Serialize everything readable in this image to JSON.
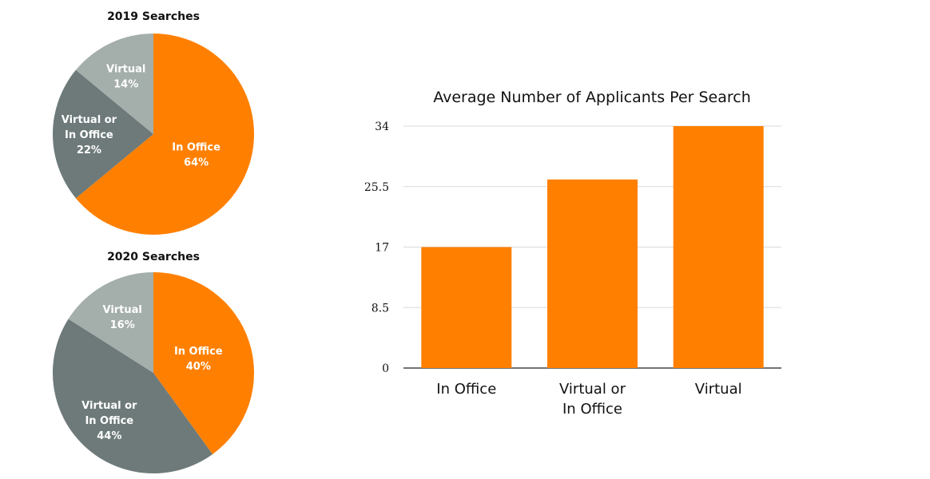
{
  "colors": {
    "in_office": "#FF8000",
    "virtual_or_in_office": "#6E7A7A",
    "virtual": "#A4AEAB",
    "bar": "#FF8000",
    "grid": "#d9d9d9",
    "axis": "#222222"
  },
  "chart_data": [
    {
      "type": "pie",
      "title": "2019 Searches",
      "slices": [
        {
          "label_lines": [
            "In Office",
            "64%"
          ],
          "value": 64,
          "color_key": "in_office"
        },
        {
          "label_lines": [
            "Virtual or",
            "In Office",
            "22%"
          ],
          "value": 22,
          "color_key": "virtual_or_in_office"
        },
        {
          "label_lines": [
            "Virtual",
            "14%"
          ],
          "value": 14,
          "color_key": "virtual"
        }
      ]
    },
    {
      "type": "pie",
      "title": "2020 Searches",
      "slices": [
        {
          "label_lines": [
            "In Office",
            "40%"
          ],
          "value": 40,
          "color_key": "in_office"
        },
        {
          "label_lines": [
            "Virtual or",
            "In Office",
            "44%"
          ],
          "value": 44,
          "color_key": "virtual_or_in_office"
        },
        {
          "label_lines": [
            "Virtual",
            "16%"
          ],
          "value": 16,
          "color_key": "virtual"
        }
      ]
    },
    {
      "type": "bar",
      "title": "Average Number of Applicants Per Search",
      "categories": [
        [
          "In Office"
        ],
        [
          "Virtual or",
          "In Office"
        ],
        [
          "Virtual"
        ]
      ],
      "values": [
        17,
        26.5,
        34
      ],
      "yticks": [
        "0",
        "8.5",
        "17",
        "25.5",
        "34"
      ],
      "ylim": [
        0,
        34
      ],
      "grid": true
    }
  ]
}
